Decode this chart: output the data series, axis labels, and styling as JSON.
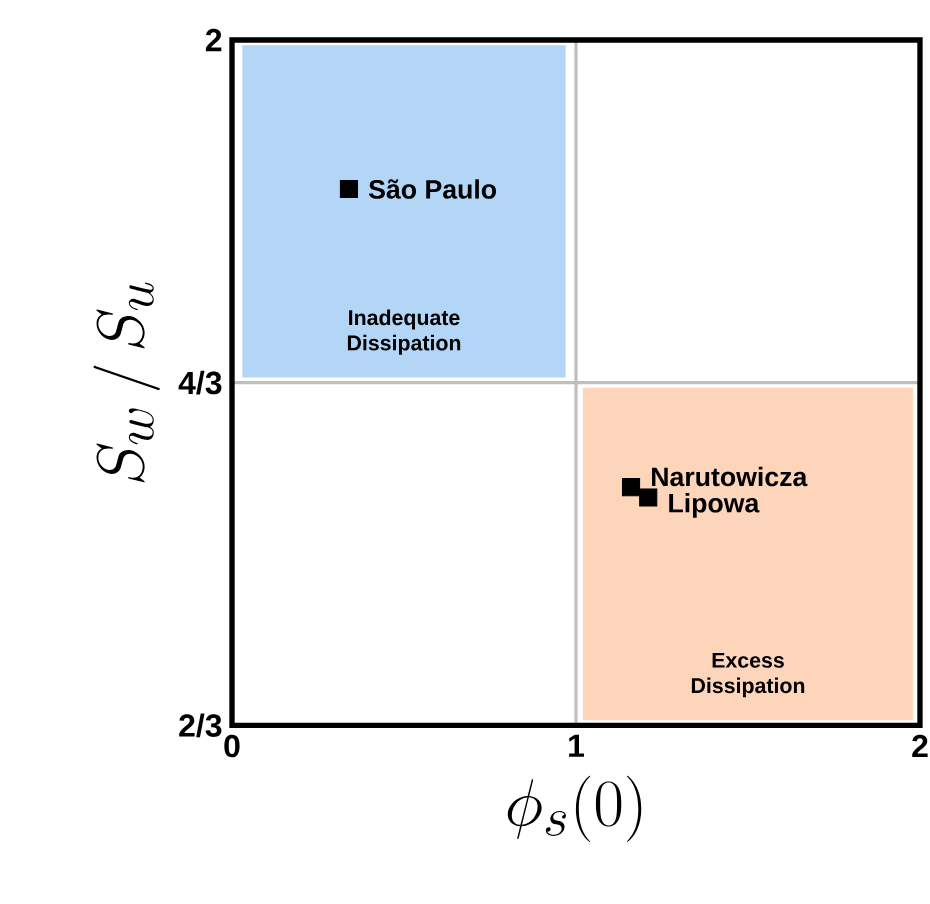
{
  "chart_data": {
    "type": "scatter",
    "xlabel": "\\phi_{s}(0)",
    "ylabel": "S_{w}\\,/\\,S_{u}",
    "xlim": [
      0,
      2
    ],
    "ylim": [
      0.6667,
      2
    ],
    "xticks": [
      0,
      1,
      2
    ],
    "yticks": [
      {
        "value": 0.6667,
        "label": "2/3"
      },
      {
        "value": 1.3333,
        "label": "4/3"
      },
      2
    ],
    "grid": true,
    "marker": "square",
    "series": [
      {
        "name": "São Paulo",
        "color": "#000000",
        "x": [
          0.34
        ],
        "values": [
          1.71
        ]
      },
      {
        "name": "Narutowicza",
        "color": "#000000",
        "x": [
          1.16
        ],
        "values": [
          1.13
        ]
      },
      {
        "name": "Lipowa",
        "color": "#000000",
        "x": [
          1.21
        ],
        "values": [
          1.11
        ]
      }
    ],
    "bands": [
      {
        "axis": "x",
        "from": 0.03,
        "to": 0.97,
        "color": "#b3d5f6",
        "label": "Inadequate Dissipation"
      },
      {
        "axis": "x",
        "from": 1.02,
        "to": 1.98,
        "color": "#fdd5bb",
        "label": "Excess Dissipation"
      }
    ]
  }
}
